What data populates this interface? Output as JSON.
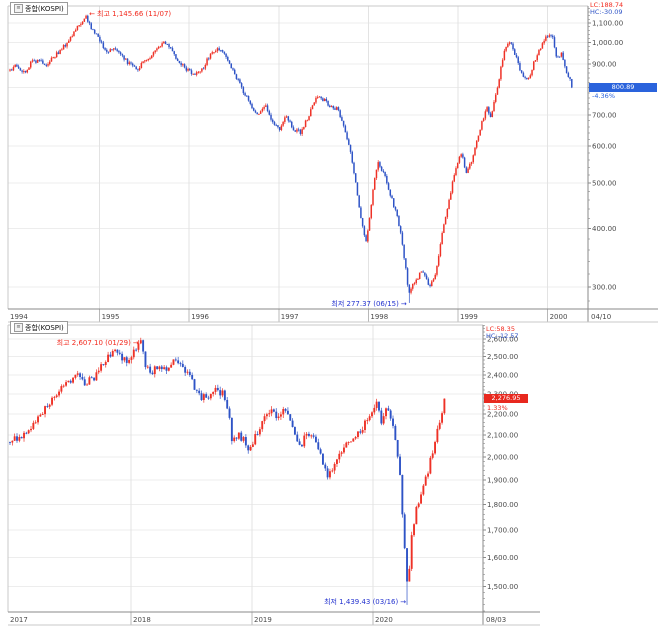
{
  "icons": {
    "menu": "≡",
    "arrow_left": "←",
    "arrow_right": "→"
  },
  "colors": {
    "up": "#ee3126",
    "down": "#2e53c6",
    "grid": "#ededed",
    "grid_vertical": "#e3e3e3",
    "axis": "#8a8a8a",
    "frame": "#c8c8c8",
    "band_line": "#b8b8b8",
    "label": "#4a4a4a",
    "annotation_high": "#f22a1e",
    "annotation_low": "#2433cf",
    "lc_color": "#f22a1e",
    "hc_color": "#2e53c6",
    "badge_up_bg": "#e8281e",
    "badge_down_bg": "#2a63dc",
    "badge_text": "#ffffff"
  },
  "chart_data": [
    {
      "type": "candlestick",
      "title": "종합(KOSPI)",
      "timeframe": "weekly",
      "scale": "log",
      "t_start": 1994.0,
      "t_end": 2000.27,
      "x_tick_labels": [
        "1994",
        "1995",
        "1996",
        "1997",
        "1998",
        "1999",
        "2000"
      ],
      "x_end_label": "04/10",
      "y_tick_values": [
        1100,
        1000,
        900,
        800,
        700,
        600,
        500,
        400,
        300
      ],
      "y_tick_labels": [
        "1,100.00",
        "1,000.00",
        "900.00",
        "800.00",
        "700.00",
        "600.00",
        "500.00",
        "400.00",
        "300.00"
      ],
      "lc_label": "LC:188.74",
      "hc_label": "HC:-30.09",
      "high": {
        "label": "최고 1,145.66 (11/07)",
        "value": 1145.66,
        "t": 1994.85
      },
      "low": {
        "label": "최저 277.37 (06/15)",
        "value": 277.37,
        "t": 1998.45
      },
      "last": {
        "price": "800.89",
        "value": 800.89,
        "change_pct": "-4.36%",
        "direction": "down"
      },
      "keypoints": [
        [
          1994.0,
          870
        ],
        [
          1994.08,
          893
        ],
        [
          1994.16,
          858
        ],
        [
          1994.24,
          908
        ],
        [
          1994.32,
          918
        ],
        [
          1994.4,
          885
        ],
        [
          1994.48,
          928
        ],
        [
          1994.56,
          955
        ],
        [
          1994.64,
          1000
        ],
        [
          1994.72,
          1060
        ],
        [
          1994.8,
          1105
        ],
        [
          1994.85,
          1138
        ],
        [
          1994.9,
          1070
        ],
        [
          1995.0,
          1013
        ],
        [
          1995.08,
          948
        ],
        [
          1995.16,
          968
        ],
        [
          1995.24,
          935
        ],
        [
          1995.32,
          902
        ],
        [
          1995.42,
          878
        ],
        [
          1995.52,
          918
        ],
        [
          1995.62,
          952
        ],
        [
          1995.72,
          998
        ],
        [
          1995.8,
          968
        ],
        [
          1995.9,
          898
        ],
        [
          1996.0,
          868
        ],
        [
          1996.08,
          852
        ],
        [
          1996.16,
          888
        ],
        [
          1996.24,
          948
        ],
        [
          1996.32,
          978
        ],
        [
          1996.4,
          942
        ],
        [
          1996.5,
          858
        ],
        [
          1996.6,
          788
        ],
        [
          1996.68,
          738
        ],
        [
          1996.76,
          698
        ],
        [
          1996.84,
          738
        ],
        [
          1996.92,
          678
        ],
        [
          1997.0,
          652
        ],
        [
          1997.08,
          692
        ],
        [
          1997.16,
          655
        ],
        [
          1997.24,
          642
        ],
        [
          1997.32,
          688
        ],
        [
          1997.42,
          768
        ],
        [
          1997.5,
          752
        ],
        [
          1997.58,
          732
        ],
        [
          1997.66,
          718
        ],
        [
          1997.74,
          648
        ],
        [
          1997.8,
          578
        ],
        [
          1997.86,
          498
        ],
        [
          1997.92,
          418
        ],
        [
          1997.97,
          368
        ],
        [
          1998.03,
          448
        ],
        [
          1998.1,
          552
        ],
        [
          1998.17,
          528
        ],
        [
          1998.25,
          468
        ],
        [
          1998.33,
          418
        ],
        [
          1998.4,
          348
        ],
        [
          1998.45,
          292
        ],
        [
          1998.52,
          308
        ],
        [
          1998.6,
          325
        ],
        [
          1998.68,
          302
        ],
        [
          1998.75,
          318
        ],
        [
          1998.82,
          388
        ],
        [
          1998.89,
          448
        ],
        [
          1998.96,
          528
        ],
        [
          1999.03,
          582
        ],
        [
          1999.1,
          525
        ],
        [
          1999.17,
          572
        ],
        [
          1999.25,
          658
        ],
        [
          1999.32,
          728
        ],
        [
          1999.37,
          695
        ],
        [
          1999.45,
          822
        ],
        [
          1999.52,
          968
        ],
        [
          1999.58,
          1005
        ],
        [
          1999.65,
          925
        ],
        [
          1999.72,
          845
        ],
        [
          1999.79,
          838
        ],
        [
          1999.86,
          918
        ],
        [
          1999.93,
          985
        ],
        [
          2000.0,
          1032
        ],
        [
          2000.05,
          1048
        ],
        [
          2000.1,
          918
        ],
        [
          2000.15,
          948
        ],
        [
          2000.2,
          878
        ],
        [
          2000.24,
          838
        ],
        [
          2000.27,
          805
        ]
      ]
    },
    {
      "type": "candlestick",
      "title": "종합(KOSPI)",
      "timeframe": "weekly",
      "scale": "log",
      "t_start": 2017.0,
      "t_end": 2020.59,
      "x_tick_labels": [
        "2017",
        "2018",
        "2019",
        "2020"
      ],
      "x_end_label": "08/03",
      "y_tick_values": [
        2600,
        2500,
        2400,
        2300,
        2200,
        2100,
        2000,
        1900,
        1800,
        1700,
        1600,
        1500
      ],
      "y_tick_labels": [
        "2,600.00",
        "2,500.00",
        "2,400.00",
        "2,300.00",
        "2,200.00",
        "2,100.00",
        "2,000.00",
        "1,900.00",
        "1,800.00",
        "1,700.00",
        "1,600.00",
        "1,500.00"
      ],
      "lc_label": "LC:58.35",
      "hc_label": "HC:-12.57",
      "high": {
        "label": "최고 2,607.10 (01/29)",
        "value": 2607.1,
        "t": 2018.08
      },
      "low": {
        "label": "최저 1,439.43 (03/16)",
        "value": 1439.43,
        "t": 2020.29
      },
      "last": {
        "price": "2,276.95",
        "value": 2276.95,
        "change_pct": "1.33%",
        "direction": "up"
      },
      "keypoints": [
        [
          2017.0,
          2068
        ],
        [
          2017.08,
          2092
        ],
        [
          2017.16,
          2140
        ],
        [
          2017.24,
          2185
        ],
        [
          2017.32,
          2245
        ],
        [
          2017.4,
          2310
        ],
        [
          2017.48,
          2370
        ],
        [
          2017.55,
          2400
        ],
        [
          2017.62,
          2365
        ],
        [
          2017.7,
          2385
        ],
        [
          2017.78,
          2475
        ],
        [
          2017.85,
          2530
        ],
        [
          2017.92,
          2490
        ],
        [
          2018.0,
          2480
        ],
        [
          2018.05,
          2560
        ],
        [
          2018.08,
          2590
        ],
        [
          2018.12,
          2450
        ],
        [
          2018.17,
          2400
        ],
        [
          2018.22,
          2450
        ],
        [
          2018.28,
          2435
        ],
        [
          2018.34,
          2470
        ],
        [
          2018.4,
          2450
        ],
        [
          2018.46,
          2420
        ],
        [
          2018.52,
          2340
        ],
        [
          2018.58,
          2280
        ],
        [
          2018.64,
          2290
        ],
        [
          2018.7,
          2320
        ],
        [
          2018.76,
          2300
        ],
        [
          2018.8,
          2230
        ],
        [
          2018.84,
          2060
        ],
        [
          2018.88,
          2100
        ],
        [
          2018.93,
          2075
        ],
        [
          2018.98,
          2028
        ],
        [
          2019.04,
          2105
        ],
        [
          2019.1,
          2180
        ],
        [
          2019.16,
          2210
        ],
        [
          2019.22,
          2185
        ],
        [
          2019.28,
          2230
        ],
        [
          2019.34,
          2140
        ],
        [
          2019.4,
          2045
        ],
        [
          2019.46,
          2110
        ],
        [
          2019.52,
          2085
        ],
        [
          2019.58,
          1990
        ],
        [
          2019.63,
          1920
        ],
        [
          2019.68,
          1955
        ],
        [
          2019.74,
          2030
        ],
        [
          2019.8,
          2065
        ],
        [
          2019.86,
          2090
        ],
        [
          2019.92,
          2135
        ],
        [
          2019.98,
          2200
        ],
        [
          2020.03,
          2245
        ],
        [
          2020.07,
          2160
        ],
        [
          2020.11,
          2235
        ],
        [
          2020.15,
          2160
        ],
        [
          2020.19,
          2080
        ],
        [
          2020.23,
          1870
        ],
        [
          2020.27,
          1560
        ],
        [
          2020.29,
          1490
        ],
        [
          2020.32,
          1690
        ],
        [
          2020.36,
          1790
        ],
        [
          2020.4,
          1855
        ],
        [
          2020.44,
          1905
        ],
        [
          2020.48,
          2000
        ],
        [
          2020.52,
          2095
        ],
        [
          2020.55,
          2135
        ],
        [
          2020.57,
          2210
        ],
        [
          2020.59,
          2272
        ]
      ]
    }
  ]
}
